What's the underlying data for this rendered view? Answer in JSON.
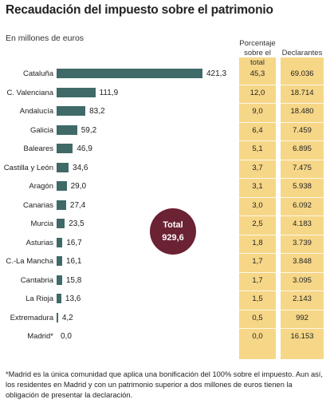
{
  "header": {
    "title": "Recaudación del impuesto sobre el patrimonio",
    "subtitle": "En millones de euros",
    "col_pct": "Porcentaje sobre el total",
    "col_dec": "Declarantes"
  },
  "chart_data": {
    "type": "bar",
    "orientation": "horizontal",
    "categories": [
      "Cataluña",
      "C. Valenciana",
      "Andalucía",
      "Galicia",
      "Baleares",
      "Castilla y León",
      "Aragón",
      "Canarias",
      "Murcia",
      "Asturias",
      "C.-La Mancha",
      "Cantabria",
      "La Rioja",
      "Extremadura",
      "Madrid*"
    ],
    "values": [
      421.3,
      111.9,
      83.2,
      59.2,
      46.9,
      34.6,
      29.0,
      27.4,
      23.5,
      16.7,
      16.1,
      15.8,
      13.6,
      4.2,
      0.0
    ],
    "value_labels": [
      "421,3",
      "111,9",
      "83,2",
      "59,2",
      "46,9",
      "34,6",
      "29,0",
      "27,4",
      "23,5",
      "16,7",
      "16,1",
      "15,8",
      "13,6",
      "4,2",
      "0,0"
    ],
    "percentages": [
      "45,3",
      "12,0",
      "9,0",
      "6,4",
      "5,1",
      "3,7",
      "3,1",
      "3,0",
      "2,5",
      "1,8",
      "1,7",
      "1,7",
      "1,5",
      "0,5",
      "0,0"
    ],
    "declarantes": [
      "69.036",
      "18.714",
      "18.480",
      "7.459",
      "6.895",
      "7.475",
      "5.938",
      "6.092",
      "4.183",
      "3.739",
      "3.848",
      "3.095",
      "2.143",
      "992",
      "16.153"
    ],
    "xlim": [
      0,
      421.3
    ],
    "colors": {
      "bar": "#3f6a68",
      "column": "#f6d788",
      "total": "#6b2233"
    }
  },
  "total": {
    "label": "Total",
    "value": "929,6"
  },
  "footnote": "*Madrid es la única comunidad que aplica una bonificación del 100% sobre el impuesto. Aun así, los residentes en Madrid y con un patrimonio superior a dos millones de euros tienen la obligación de presentar la declaración."
}
